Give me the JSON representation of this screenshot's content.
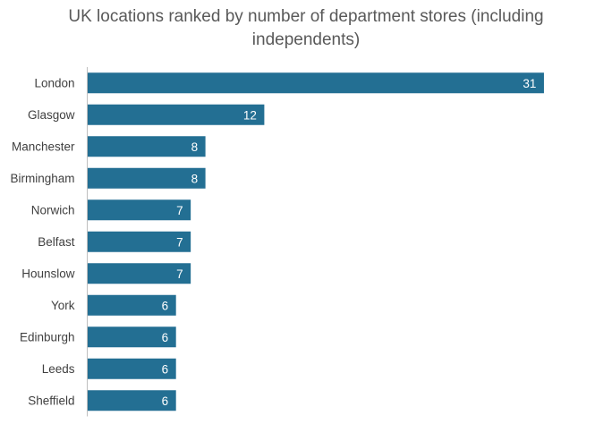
{
  "chart_data": {
    "type": "bar",
    "orientation": "horizontal",
    "title_line1": "UK locations ranked by number of department stores (including",
    "title_line2": "independents)",
    "categories": [
      "London",
      "Glasgow",
      "Manchester",
      "Birmingham",
      "Norwich",
      "Belfast",
      "Hounslow",
      "York",
      "Edinburgh",
      "Leeds",
      "Sheffield"
    ],
    "values": [
      31,
      12,
      8,
      8,
      7,
      7,
      7,
      6,
      6,
      6,
      6
    ],
    "xlim": [
      0,
      35
    ],
    "grid": false,
    "data_labels": "inside-end",
    "bar_color": "#236f93",
    "label_color": "#ffffff"
  }
}
